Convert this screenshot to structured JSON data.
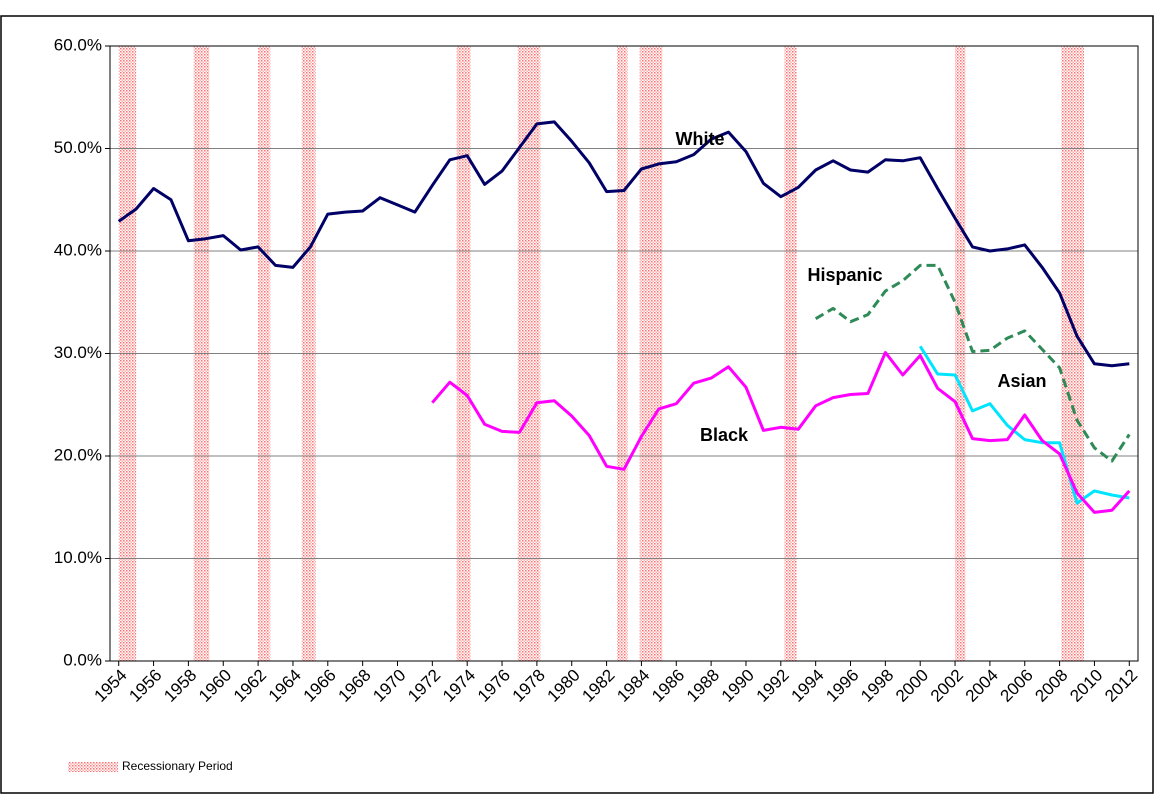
{
  "chart_data": {
    "type": "line",
    "x": [
      1954,
      1955,
      1956,
      1957,
      1958,
      1959,
      1960,
      1961,
      1962,
      1963,
      1964,
      1965,
      1966,
      1967,
      1968,
      1969,
      1970,
      1971,
      1972,
      1973,
      1974,
      1975,
      1976,
      1977,
      1978,
      1979,
      1980,
      1981,
      1982,
      1983,
      1984,
      1985,
      1986,
      1987,
      1988,
      1989,
      1990,
      1991,
      1992,
      1993,
      1994,
      1995,
      1996,
      1997,
      1998,
      1999,
      2000,
      2001,
      2002,
      2003,
      2004,
      2005,
      2006,
      2007,
      2008,
      2009,
      2010,
      2011,
      2012
    ],
    "xlim": [
      1953.5,
      2012.5
    ],
    "xticks": [
      1954,
      1956,
      1958,
      1960,
      1962,
      1964,
      1966,
      1968,
      1970,
      1972,
      1974,
      1976,
      1978,
      1980,
      1982,
      1984,
      1986,
      1988,
      1990,
      1992,
      1994,
      1996,
      1998,
      2000,
      2002,
      2004,
      2006,
      2008,
      2010,
      2012
    ],
    "ylim": [
      0,
      60
    ],
    "yticks": [
      {
        "value": 0,
        "label": "0.0%"
      },
      {
        "value": 10,
        "label": "10.0%"
      },
      {
        "value": 20,
        "label": "20.0%"
      },
      {
        "value": 30,
        "label": "30.0%"
      },
      {
        "value": 40,
        "label": "40.0%"
      },
      {
        "value": 50,
        "label": "50.0%"
      },
      {
        "value": 60,
        "label": "60.0%"
      }
    ],
    "grid": true,
    "series": [
      {
        "name": "White",
        "color": "#000066",
        "dash": false,
        "values": [
          42.9,
          44.1,
          46.1,
          45.0,
          41.0,
          41.2,
          41.5,
          40.1,
          40.4,
          38.6,
          38.4,
          40.4,
          43.6,
          43.8,
          43.9,
          45.2,
          44.5,
          43.8,
          46.4,
          48.9,
          49.3,
          46.5,
          47.8,
          50.1,
          52.4,
          52.6,
          50.7,
          48.6,
          45.8,
          45.9,
          48.0,
          48.5,
          48.7,
          49.4,
          50.9,
          51.6,
          49.7,
          46.6,
          45.3,
          46.2,
          47.9,
          48.8,
          47.9,
          47.7,
          48.9,
          48.8,
          49.1,
          46.1,
          43.2,
          40.4,
          40.0,
          40.2,
          40.6,
          38.4,
          35.9,
          31.7,
          29.0,
          28.8,
          29.0
        ]
      },
      {
        "name": "Hispanic",
        "color": "#2e8b57",
        "dash": true,
        "values": [
          null,
          null,
          null,
          null,
          null,
          null,
          null,
          null,
          null,
          null,
          null,
          null,
          null,
          null,
          null,
          null,
          null,
          null,
          null,
          null,
          null,
          null,
          null,
          null,
          null,
          null,
          null,
          null,
          null,
          null,
          null,
          null,
          null,
          null,
          null,
          null,
          null,
          null,
          null,
          null,
          33.4,
          34.4,
          33.1,
          33.8,
          36.1,
          37.1,
          38.6,
          38.6,
          35.0,
          30.2,
          30.3,
          31.5,
          32.2,
          30.4,
          28.6,
          23.5,
          20.8,
          19.5,
          22.1
        ]
      },
      {
        "name": "Asian",
        "color": "#00e5ff",
        "dash": false,
        "values": [
          null,
          null,
          null,
          null,
          null,
          null,
          null,
          null,
          null,
          null,
          null,
          null,
          null,
          null,
          null,
          null,
          null,
          null,
          null,
          null,
          null,
          null,
          null,
          null,
          null,
          null,
          null,
          null,
          null,
          null,
          null,
          null,
          null,
          null,
          null,
          null,
          null,
          null,
          null,
          null,
          null,
          null,
          null,
          null,
          null,
          null,
          30.7,
          28.0,
          27.9,
          24.4,
          25.1,
          23.0,
          21.6,
          21.3,
          21.3,
          15.4,
          16.6,
          16.2,
          15.9
        ]
      },
      {
        "name": "Black",
        "color": "#ff00ff",
        "dash": false,
        "values": [
          null,
          null,
          null,
          null,
          null,
          null,
          null,
          null,
          null,
          null,
          null,
          null,
          null,
          null,
          null,
          null,
          null,
          null,
          25.2,
          27.2,
          25.9,
          23.1,
          22.4,
          22.3,
          25.2,
          25.4,
          23.9,
          22.0,
          19.0,
          18.7,
          21.9,
          24.6,
          25.1,
          27.1,
          27.6,
          28.7,
          26.7,
          22.5,
          22.8,
          22.6,
          24.9,
          25.7,
          26.0,
          26.1,
          30.1,
          27.9,
          29.8,
          26.6,
          25.3,
          21.7,
          21.5,
          21.6,
          24.0,
          21.5,
          20.2,
          16.4,
          14.5,
          14.7,
          16.6
        ]
      }
    ],
    "recession_label": "Recessionary Period",
    "recessions": [
      [
        1954,
        1955
      ],
      [
        1958.3,
        1959.2
      ],
      [
        1962,
        1962.7
      ],
      [
        1964.5,
        1965.3
      ],
      [
        1973.4,
        1974.2
      ],
      [
        1976.9,
        1978.2
      ],
      [
        1982.6,
        1983.2
      ],
      [
        1983.9,
        1985.2
      ],
      [
        1992.2,
        1992.9
      ],
      [
        2002,
        2002.6
      ],
      [
        2008.1,
        2009.4
      ]
    ]
  }
}
